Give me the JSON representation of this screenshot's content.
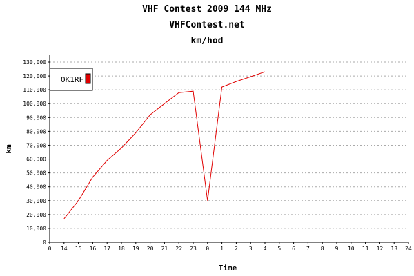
{
  "chart_data": {
    "type": "line",
    "title": "VHF Contest 2009 144 MHz",
    "subtitle": "VHFContest.net",
    "subtitle2": "km/hod",
    "xlabel": "Time",
    "ylabel": "km",
    "x_tick_labels": [
      "0",
      "14",
      "15",
      "16",
      "17",
      "18",
      "19",
      "20",
      "21",
      "22",
      "23",
      "0",
      "1",
      "2",
      "3",
      "4",
      "5",
      "6",
      "7",
      "8",
      "9",
      "10",
      "11",
      "12",
      "13",
      "24"
    ],
    "y_ticks": [
      0,
      10000,
      20000,
      30000,
      40000,
      50000,
      60000,
      70000,
      80000,
      90000,
      100000,
      110000,
      120000,
      130000
    ],
    "y_tick_labels": [
      "0",
      "10,000",
      "20,000",
      "30,000",
      "40,000",
      "50,000",
      "60,000",
      "70,000",
      "80,000",
      "90,000",
      "100,000",
      "110,000",
      "120,000",
      "130,000"
    ],
    "ylim": [
      0,
      130000
    ],
    "grid": true,
    "legend_placement": "top-left",
    "series": [
      {
        "name": "OK1RF",
        "color": "#e00000",
        "points": [
          {
            "x": 14,
            "y": 17000
          },
          {
            "x": 15,
            "y": 30000
          },
          {
            "x": 16,
            "y": 47000
          },
          {
            "x": 17,
            "y": 59000
          },
          {
            "x": 18,
            "y": 68000
          },
          {
            "x": 19,
            "y": 79000
          },
          {
            "x": 20,
            "y": 92000
          },
          {
            "x": 21,
            "y": 100000
          },
          {
            "x": 22,
            "y": 108000
          },
          {
            "x": 23,
            "y": 109000
          },
          {
            "x": 0,
            "y": 30000
          },
          {
            "x": 1,
            "y": 112000
          },
          {
            "x": 2,
            "y": 116000
          },
          {
            "x": 3,
            "y": 119500
          },
          {
            "x": 4,
            "y": 123000
          }
        ]
      }
    ]
  }
}
